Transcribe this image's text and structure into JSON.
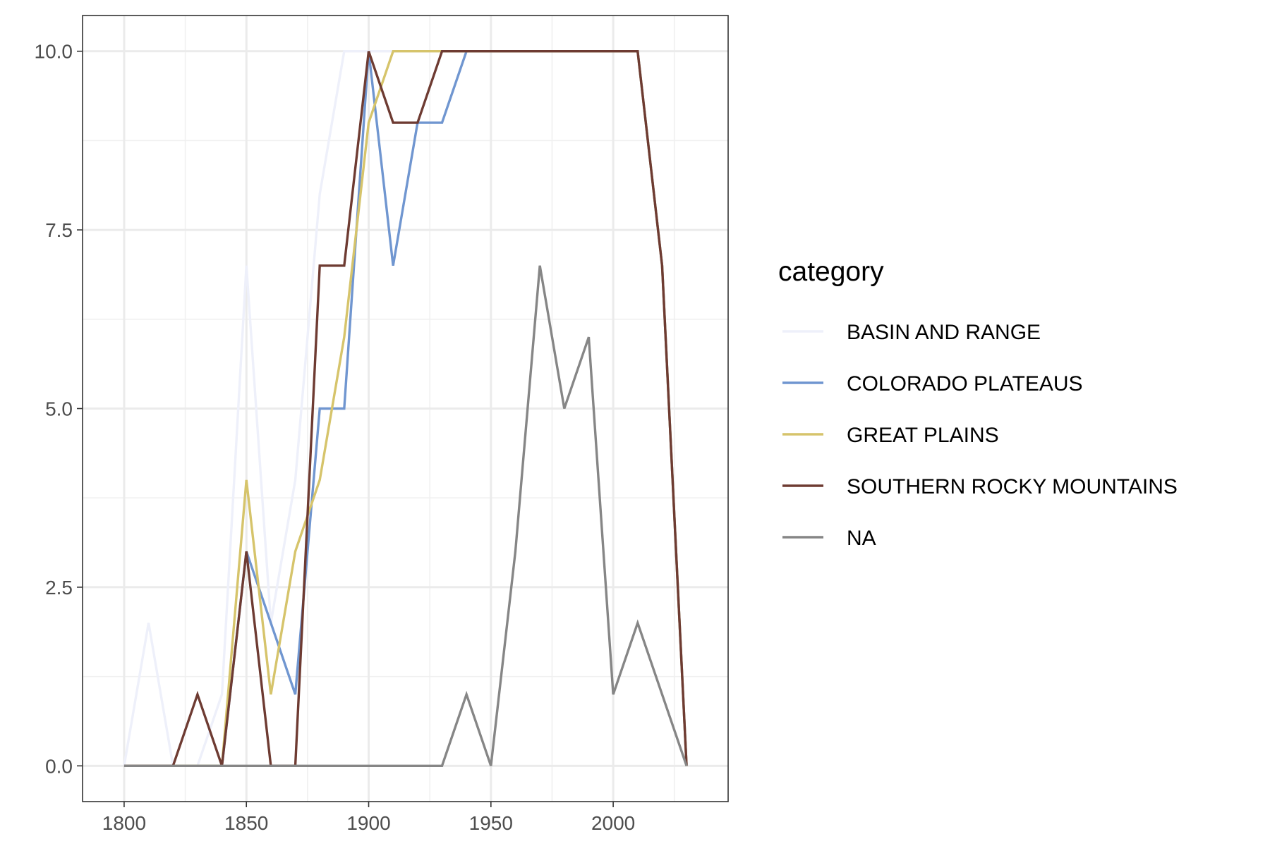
{
  "chart_data": {
    "type": "line",
    "title": "",
    "xlabel": "",
    "ylabel": "",
    "xlim": [
      1783,
      2047
    ],
    "ylim": [
      -0.5,
      10.5
    ],
    "x_ticks": [
      1800,
      1850,
      1900,
      1950,
      2000
    ],
    "x_tick_labels": [
      "1800",
      "1850",
      "1900",
      "1950",
      "2000"
    ],
    "y_ticks": [
      0,
      2.5,
      5,
      7.5,
      10
    ],
    "y_tick_labels": [
      "0.0",
      "2.5",
      "5.0",
      "7.5",
      "10.0"
    ],
    "grid": true,
    "theme": "bw",
    "legend": {
      "title": "category",
      "position": "right"
    },
    "series": [
      {
        "name": "BASIN AND RANGE",
        "color": "#eef0fa",
        "x": [
          1800,
          1810,
          1820,
          1830,
          1840,
          1850,
          1860,
          1870,
          1880,
          1890,
          1900,
          1910,
          1920,
          1930,
          1940,
          1950,
          1960,
          1970,
          1980,
          1990,
          2000,
          2010,
          2020,
          2030
        ],
        "y": [
          0,
          2,
          0,
          0,
          1,
          7,
          2,
          4,
          8,
          10,
          10,
          10,
          10,
          10,
          10,
          10,
          10,
          10,
          10,
          10,
          10,
          10,
          7,
          0
        ]
      },
      {
        "name": "COLORADO PLATEAUS",
        "color": "#7096d0",
        "x": [
          1800,
          1810,
          1820,
          1830,
          1840,
          1850,
          1860,
          1870,
          1880,
          1890,
          1900,
          1910,
          1920,
          1930,
          1940,
          1950,
          1960,
          1970,
          1980,
          1990,
          2000,
          2010,
          2020,
          2030
        ],
        "y": [
          0,
          0,
          0,
          0,
          0,
          3,
          2,
          1,
          5,
          5,
          10,
          7,
          9,
          9,
          10,
          10,
          10,
          10,
          10,
          10,
          10,
          10,
          7,
          0
        ]
      },
      {
        "name": "GREAT PLAINS",
        "color": "#d6c46b",
        "x": [
          1800,
          1810,
          1820,
          1830,
          1840,
          1850,
          1860,
          1870,
          1880,
          1890,
          1900,
          1910,
          1920,
          1930,
          1940,
          1950,
          1960,
          1970,
          1980,
          1990,
          2000,
          2010,
          2020,
          2030
        ],
        "y": [
          0,
          0,
          0,
          0,
          0,
          4,
          1,
          3,
          4,
          6,
          9,
          10,
          10,
          10,
          10,
          10,
          10,
          10,
          10,
          10,
          10,
          10,
          7,
          0
        ]
      },
      {
        "name": "SOUTHERN ROCKY MOUNTAINS",
        "color": "#6e3b32",
        "x": [
          1800,
          1810,
          1820,
          1830,
          1840,
          1850,
          1860,
          1870,
          1880,
          1890,
          1900,
          1910,
          1920,
          1930,
          1940,
          1950,
          1960,
          1970,
          1980,
          1990,
          2000,
          2010,
          2020,
          2030
        ],
        "y": [
          0,
          0,
          0,
          1,
          0,
          3,
          0,
          0,
          7,
          7,
          10,
          9,
          9,
          10,
          10,
          10,
          10,
          10,
          10,
          10,
          10,
          10,
          7,
          0
        ]
      },
      {
        "name": "NA",
        "color": "#868686",
        "x": [
          1800,
          1810,
          1820,
          1830,
          1840,
          1850,
          1860,
          1870,
          1880,
          1890,
          1900,
          1910,
          1920,
          1930,
          1940,
          1950,
          1960,
          1970,
          1980,
          1990,
          2000,
          2010,
          2020,
          2030
        ],
        "y": [
          0,
          0,
          0,
          0,
          0,
          0,
          0,
          0,
          0,
          0,
          0,
          0,
          0,
          0,
          1,
          0,
          3,
          7,
          5,
          6,
          1,
          2,
          1,
          0
        ]
      }
    ]
  }
}
